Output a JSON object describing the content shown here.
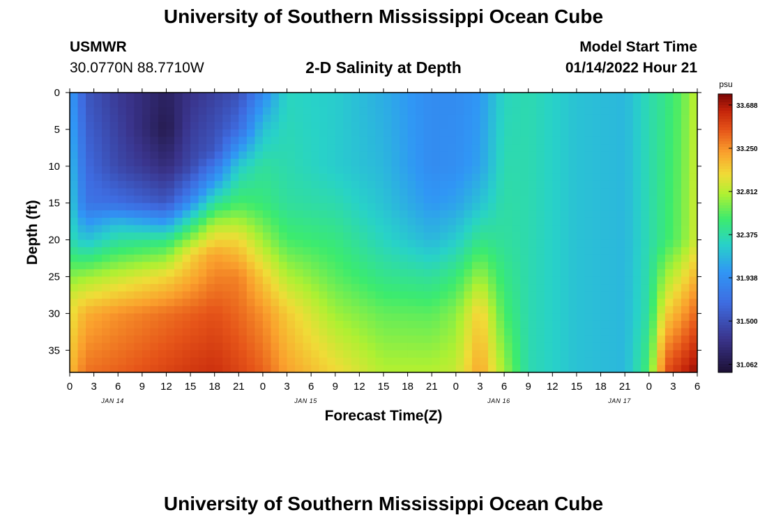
{
  "titles": {
    "top": "University of Southern Mississippi Ocean Cube",
    "bottom": "University of Southern Mississippi Ocean Cube"
  },
  "station": {
    "name": "USMWR",
    "coords": "30.0770N  88.7710W"
  },
  "model": {
    "label": "Model Start Time",
    "start": "01/14/2022 Hour 21"
  },
  "chart_data": {
    "type": "heatmap",
    "title": "2-D Salinity at Depth",
    "xlabel": "Forecast Time(Z)",
    "ylabel": "Depth (ft)",
    "x_tick_labels": [
      "0",
      "3",
      "6",
      "9",
      "12",
      "15",
      "18",
      "21",
      "0",
      "3",
      "6",
      "9",
      "12",
      "15",
      "18",
      "21",
      "0",
      "3",
      "6",
      "9",
      "12",
      "15",
      "18",
      "21",
      "0",
      "3",
      "6"
    ],
    "x_day_labels": [
      {
        "label": "JAN 14",
        "hour": 16
      },
      {
        "label": "JAN 15",
        "hour": 88
      },
      {
        "label": "JAN 16",
        "hour": 160
      },
      {
        "label": "JAN 17",
        "hour": 205
      }
    ],
    "xlim_hours": [
      0,
      78
    ],
    "y_tick_labels": [
      "0",
      "5",
      "10",
      "15",
      "20",
      "25",
      "30",
      "35"
    ],
    "ylim": [
      0,
      38
    ],
    "colorbar": {
      "unit": "psu",
      "range": [
        30.98,
        33.8
      ],
      "tick_labels": [
        "33.688",
        "33.250",
        "32.812",
        "32.375",
        "31.938",
        "31.500",
        "31.062"
      ]
    },
    "salinity_profiles_psu": [
      {
        "hour": 0,
        "depth_ft": [
          0,
          20,
          28,
          38
        ],
        "psu": [
          32.05,
          32.35,
          32.9,
          33.1
        ]
      },
      {
        "hour": 2,
        "depth_ft": [
          0,
          15,
          20,
          25,
          30,
          38
        ],
        "psu": [
          31.55,
          31.75,
          32.2,
          32.75,
          33.15,
          33.35
        ]
      },
      {
        "hour": 6,
        "depth_ft": [
          0,
          10,
          15,
          18,
          25,
          30,
          38
        ],
        "psu": [
          31.35,
          31.45,
          31.7,
          32.2,
          32.85,
          33.25,
          33.4
        ]
      },
      {
        "hour": 12,
        "depth_ft": [
          0,
          5,
          10,
          15,
          17,
          20,
          25,
          30,
          38
        ],
        "psu": [
          31.15,
          31.08,
          31.25,
          31.55,
          31.9,
          32.45,
          33.0,
          33.35,
          33.5
        ]
      },
      {
        "hour": 15,
        "depth_ft": [
          0,
          10,
          14,
          18,
          22,
          30,
          38
        ],
        "psu": [
          31.3,
          31.45,
          31.8,
          32.45,
          33.0,
          33.4,
          33.55
        ]
      },
      {
        "hour": 18,
        "depth_ft": [
          0,
          8,
          12,
          15,
          18,
          22,
          30,
          38
        ],
        "psu": [
          31.4,
          31.55,
          32.0,
          32.4,
          32.8,
          33.2,
          33.45,
          33.58
        ]
      },
      {
        "hour": 21,
        "depth_ft": [
          0,
          5,
          10,
          15,
          20,
          25,
          38
        ],
        "psu": [
          31.5,
          31.7,
          32.25,
          32.55,
          33.0,
          33.3,
          33.5
        ]
      },
      {
        "hour": 24,
        "depth_ft": [
          0,
          5,
          10,
          15,
          20,
          25,
          30,
          38
        ],
        "psu": [
          31.9,
          32.2,
          32.4,
          32.5,
          32.75,
          33.05,
          33.25,
          33.4
        ]
      },
      {
        "hour": 27,
        "depth_ft": [
          0,
          10,
          15,
          20,
          25,
          30,
          38
        ],
        "psu": [
          32.3,
          32.35,
          32.4,
          32.55,
          32.8,
          33.05,
          33.2
        ]
      },
      {
        "hour": 33,
        "depth_ft": [
          0,
          10,
          15,
          20,
          25,
          30,
          38
        ],
        "psu": [
          32.25,
          32.25,
          32.35,
          32.48,
          32.6,
          32.75,
          33.0
        ]
      },
      {
        "hour": 39,
        "depth_ft": [
          0,
          10,
          15,
          20,
          25,
          30,
          38
        ],
        "psu": [
          32.1,
          32.15,
          32.2,
          32.3,
          32.45,
          32.62,
          32.8
        ]
      },
      {
        "hour": 45,
        "depth_ft": [
          0,
          10,
          15,
          20,
          25,
          30,
          38
        ],
        "psu": [
          31.92,
          31.92,
          32.0,
          32.15,
          32.4,
          32.6,
          32.8
        ]
      },
      {
        "hour": 48,
        "depth_ft": [
          0,
          10,
          15,
          20,
          25,
          30,
          38
        ],
        "psu": [
          31.92,
          31.94,
          32.05,
          32.25,
          32.5,
          32.7,
          32.85
        ]
      },
      {
        "hour": 51,
        "depth_ft": [
          0,
          10,
          15,
          20,
          25,
          30,
          38
        ],
        "psu": [
          32.0,
          32.05,
          32.2,
          32.45,
          32.75,
          33.05,
          33.2
        ]
      },
      {
        "hour": 54,
        "depth_ft": [
          0,
          20,
          30,
          38
        ],
        "psu": [
          32.3,
          32.4,
          32.55,
          32.75
        ]
      },
      {
        "hour": 57,
        "depth_ft": [
          0,
          20,
          38
        ],
        "psu": [
          32.35,
          32.35,
          32.35
        ]
      },
      {
        "hour": 63,
        "depth_ft": [
          0,
          20,
          38
        ],
        "psu": [
          32.2,
          32.2,
          32.2
        ]
      },
      {
        "hour": 69,
        "depth_ft": [
          0,
          20,
          38
        ],
        "psu": [
          32.15,
          32.15,
          32.15
        ]
      },
      {
        "hour": 72,
        "depth_ft": [
          0,
          20,
          30,
          38
        ],
        "psu": [
          32.35,
          32.35,
          32.4,
          32.55
        ]
      },
      {
        "hour": 74,
        "depth_ft": [
          0,
          20,
          28,
          34,
          38
        ],
        "psu": [
          32.45,
          32.5,
          32.9,
          33.25,
          33.45
        ]
      },
      {
        "hour": 76,
        "depth_ft": [
          0,
          20,
          28,
          38
        ],
        "psu": [
          32.6,
          32.65,
          33.1,
          33.6
        ]
      },
      {
        "hour": 78,
        "depth_ft": [
          0,
          20,
          28,
          38
        ],
        "psu": [
          32.85,
          32.9,
          33.3,
          33.75
        ]
      }
    ]
  }
}
